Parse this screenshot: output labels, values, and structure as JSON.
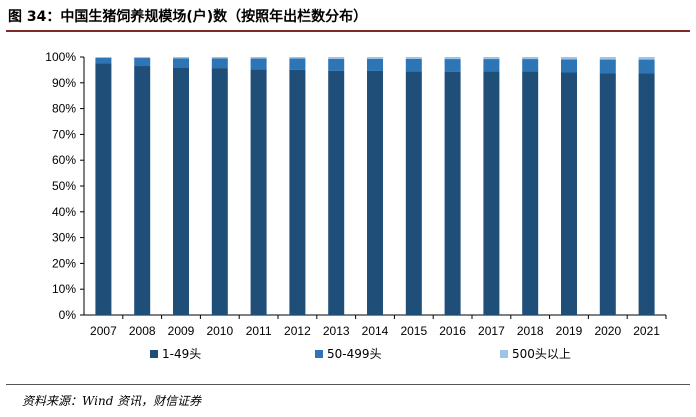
{
  "title": "图 34：中国生猪饲养规模场(户)数（按照年出栏数分布）",
  "source": "资料来源：Wind 资讯，财信证券",
  "chart_data": {
    "type": "bar",
    "stacked": true,
    "categories": [
      "2007",
      "2008",
      "2009",
      "2010",
      "2011",
      "2012",
      "2013",
      "2014",
      "2015",
      "2016",
      "2017",
      "2018",
      "2019",
      "2020",
      "2021"
    ],
    "series": [
      {
        "name": "1-49头",
        "color": "#1f4e79",
        "values": [
          97.5,
          96.5,
          96.0,
          95.7,
          95.2,
          95.1,
          94.7,
          94.6,
          94.5,
          94.2,
          94.5,
          94.5,
          94.0,
          93.6,
          93.6
        ]
      },
      {
        "name": "50-499头",
        "color": "#2e75b6",
        "values": [
          2.2,
          3.1,
          3.5,
          3.8,
          4.2,
          4.3,
          4.6,
          4.7,
          4.8,
          5.0,
          4.7,
          4.7,
          5.1,
          5.4,
          5.4
        ]
      },
      {
        "name": "500头以上",
        "color": "#9dc3e6",
        "values": [
          0.3,
          0.4,
          0.5,
          0.5,
          0.6,
          0.6,
          0.7,
          0.7,
          0.7,
          0.8,
          0.8,
          0.8,
          0.9,
          1.0,
          1.0
        ]
      }
    ],
    "yticks": [
      "0%",
      "10%",
      "20%",
      "30%",
      "40%",
      "50%",
      "60%",
      "70%",
      "80%",
      "90%",
      "100%"
    ],
    "ylim": [
      0,
      100
    ],
    "grid": false,
    "legend_position": "bottom"
  }
}
